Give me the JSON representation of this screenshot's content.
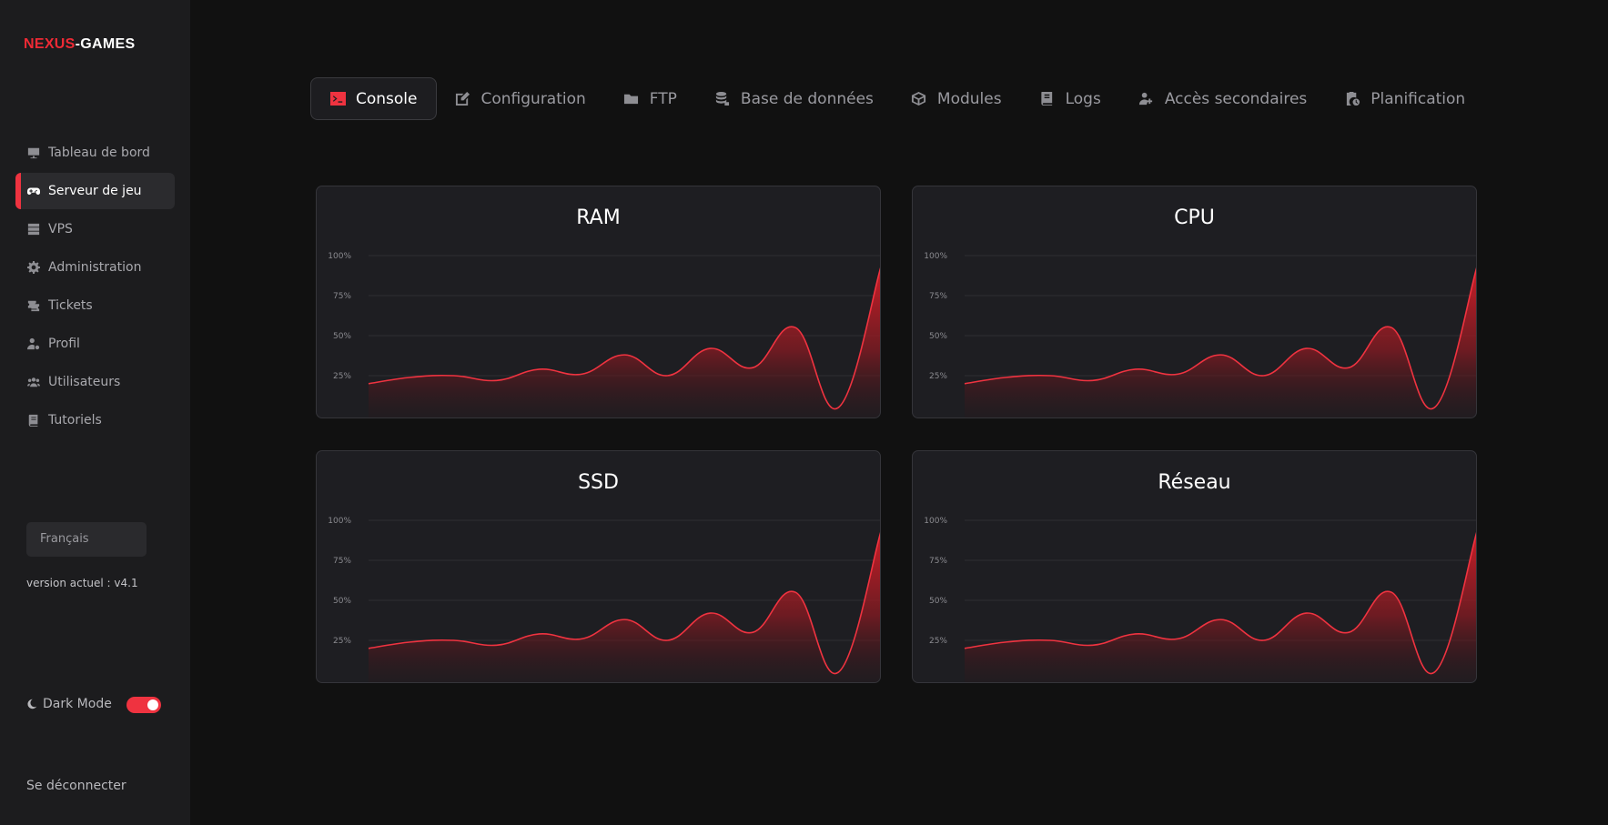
{
  "logo": {
    "part1": "NEXUS",
    "part2": "-GAMES"
  },
  "sidebar": {
    "items": [
      {
        "label": "Tableau de bord",
        "icon": "dashboard-icon"
      },
      {
        "label": "Serveur de jeu",
        "icon": "gamepad-icon",
        "active": true
      },
      {
        "label": "VPS",
        "icon": "server-icon"
      },
      {
        "label": "Administration",
        "icon": "gear-icon"
      },
      {
        "label": "Tickets",
        "icon": "tickets-icon"
      },
      {
        "label": "Profil",
        "icon": "user-gear-icon"
      },
      {
        "label": "Utilisateurs",
        "icon": "users-icon"
      },
      {
        "label": "Tutoriels",
        "icon": "book-icon"
      }
    ],
    "language": "Français",
    "version": "version actuel : v4.1",
    "dark_mode_label": "Dark Mode",
    "dark_mode_on": true,
    "logout": "Se déconnecter"
  },
  "tabs": [
    {
      "label": "Console",
      "icon": "terminal-icon",
      "active": true
    },
    {
      "label": "Configuration",
      "icon": "edit-icon"
    },
    {
      "label": "FTP",
      "icon": "folder-icon"
    },
    {
      "label": "Base de données",
      "icon": "database-icon"
    },
    {
      "label": "Modules",
      "icon": "cube-icon"
    },
    {
      "label": "Logs",
      "icon": "book-icon"
    },
    {
      "label": "Accès secondaires",
      "icon": "user-share-icon"
    },
    {
      "label": "Planification",
      "icon": "clipboard-clock-icon"
    }
  ],
  "colors": {
    "accent": "#ef3340",
    "background": "#111111",
    "sidebar": "#1c1c1e",
    "card": "#1e1e22"
  },
  "chart_data": [
    {
      "type": "area",
      "title": "RAM",
      "y_ticks": [
        "25%",
        "50%",
        "75%",
        "100%"
      ],
      "ylim": [
        0,
        110
      ],
      "values": [
        20,
        24,
        25,
        22,
        29,
        26,
        38,
        25,
        42,
        30,
        55,
        5,
        93
      ]
    },
    {
      "type": "area",
      "title": "CPU",
      "y_ticks": [
        "25%",
        "50%",
        "75%",
        "100%"
      ],
      "ylim": [
        0,
        110
      ],
      "values": [
        20,
        24,
        25,
        22,
        29,
        26,
        38,
        25,
        42,
        30,
        55,
        5,
        93
      ]
    },
    {
      "type": "area",
      "title": "SSD",
      "y_ticks": [
        "25%",
        "50%",
        "75%",
        "100%"
      ],
      "ylim": [
        0,
        110
      ],
      "values": [
        20,
        24,
        25,
        22,
        29,
        26,
        38,
        25,
        42,
        30,
        55,
        5,
        93
      ]
    },
    {
      "type": "area",
      "title": "Réseau",
      "y_ticks": [
        "25%",
        "50%",
        "75%",
        "100%"
      ],
      "ylim": [
        0,
        110
      ],
      "values": [
        20,
        24,
        25,
        22,
        29,
        26,
        38,
        25,
        42,
        30,
        55,
        5,
        93
      ]
    }
  ]
}
